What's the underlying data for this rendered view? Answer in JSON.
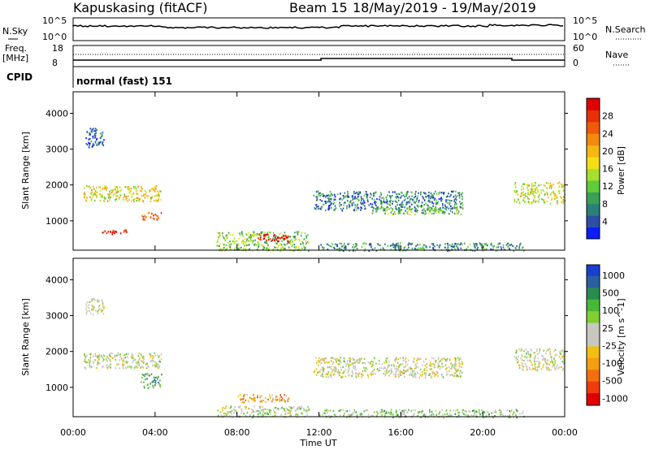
{
  "header": {
    "station": "Kapuskasing (fitACF)",
    "beam": "Beam 15",
    "dates": "18/May/2019 - 19/May/2019",
    "nsky_label": "N.Sky",
    "nsearch_label": "N.Search",
    "freq_label": "Freq.",
    "freq_unit": "[MHz]",
    "nave_label": "Nave",
    "cpid_label": "CPID",
    "cpid_value": "normal (fast) 151",
    "noise_ticks": [
      "10^5",
      "10^0"
    ],
    "freq_ticks": [
      "18",
      "8"
    ],
    "nave_ticks": [
      "60",
      "0"
    ]
  },
  "chart_data": [
    {
      "type": "heatmap",
      "name": "power",
      "ylabel": "Slant Range [km]",
      "x_range_hours": [
        0,
        24
      ],
      "y_range_km": [
        180,
        4600
      ],
      "y_ticks": [
        "1000",
        "2000",
        "3000",
        "4000"
      ],
      "colorbar": {
        "label": "Power [dB]",
        "ticks": [
          "4",
          "8",
          "12",
          "16",
          "20",
          "24",
          "28"
        ],
        "colors": [
          "#0a1eff",
          "#2e4fa8",
          "#2a7f76",
          "#3aa055",
          "#5fcc3a",
          "#a6e02c",
          "#f2e014",
          "#f7b612",
          "#f28a0e",
          "#f05a0c",
          "#e83008",
          "#e00000"
        ]
      },
      "regions": [
        {
          "t": [
            0.5,
            4.3
          ],
          "r": [
            1550,
            2000
          ],
          "level": 0.55
        },
        {
          "t": [
            0.6,
            1.5
          ],
          "r": [
            3050,
            3600
          ],
          "level": 0.15
        },
        {
          "t": [
            1.4,
            2.6
          ],
          "r": [
            620,
            760
          ],
          "level": 0.95
        },
        {
          "t": [
            3.3,
            4.3
          ],
          "r": [
            1050,
            1250
          ],
          "level": 0.8
        },
        {
          "t": [
            7.0,
            11.5
          ],
          "r": [
            180,
            720
          ],
          "level": 0.4
        },
        {
          "t": [
            9.0,
            10.5
          ],
          "r": [
            430,
            650
          ],
          "level": 0.98
        },
        {
          "t": [
            11.7,
            19.0
          ],
          "r": [
            1300,
            1850
          ],
          "level": 0.2
        },
        {
          "t": [
            14.5,
            19.0
          ],
          "r": [
            1200,
            1400
          ],
          "level": 0.35
        },
        {
          "t": [
            12.0,
            22.0
          ],
          "r": [
            180,
            400
          ],
          "level": 0.25
        },
        {
          "t": [
            21.5,
            24.0
          ],
          "r": [
            1500,
            2100
          ],
          "level": 0.5
        }
      ]
    },
    {
      "type": "heatmap",
      "name": "velocity",
      "ylabel": "Slant Range [km]",
      "xlabel": "Time UT",
      "x_ticks": [
        "00:00",
        "04:00",
        "08:00",
        "12:00",
        "16:00",
        "20:00",
        "00:00"
      ],
      "x_range_hours": [
        0,
        24
      ],
      "y_range_km": [
        180,
        4600
      ],
      "y_ticks": [
        "1000",
        "2000",
        "3000",
        "4000"
      ],
      "colorbar": {
        "label": "Velocity [m s^-1]",
        "ticks": [
          "1000",
          "500",
          "100",
          "25",
          "-25",
          "-100",
          "-500",
          "-1000"
        ],
        "colors": [
          "#1a3fd0",
          "#2a5fa0",
          "#2a8a50",
          "#48b838",
          "#7fd030",
          "#c8c8c0",
          "#c8c8c0",
          "#f0c010",
          "#f59e10",
          "#f27010",
          "#ee3c0a",
          "#e00000"
        ]
      },
      "regions": [
        {
          "t": [
            0.5,
            4.3
          ],
          "r": [
            1550,
            2000
          ],
          "level": 0.5
        },
        {
          "t": [
            0.6,
            1.5
          ],
          "r": [
            3050,
            3500
          ],
          "level": 0.5
        },
        {
          "t": [
            3.3,
            4.3
          ],
          "r": [
            1000,
            1400
          ],
          "level": 0.3
        },
        {
          "t": [
            7.0,
            11.5
          ],
          "r": [
            180,
            500
          ],
          "level": 0.45
        },
        {
          "t": [
            8.0,
            10.5
          ],
          "r": [
            600,
            820
          ],
          "level": 0.72
        },
        {
          "t": [
            11.7,
            19.0
          ],
          "r": [
            1300,
            1850
          ],
          "level": 0.5
        },
        {
          "t": [
            12.0,
            22.0
          ],
          "r": [
            180,
            400
          ],
          "level": 0.4
        },
        {
          "t": [
            21.5,
            24.0
          ],
          "r": [
            1500,
            2100
          ],
          "level": 0.5
        }
      ]
    }
  ]
}
